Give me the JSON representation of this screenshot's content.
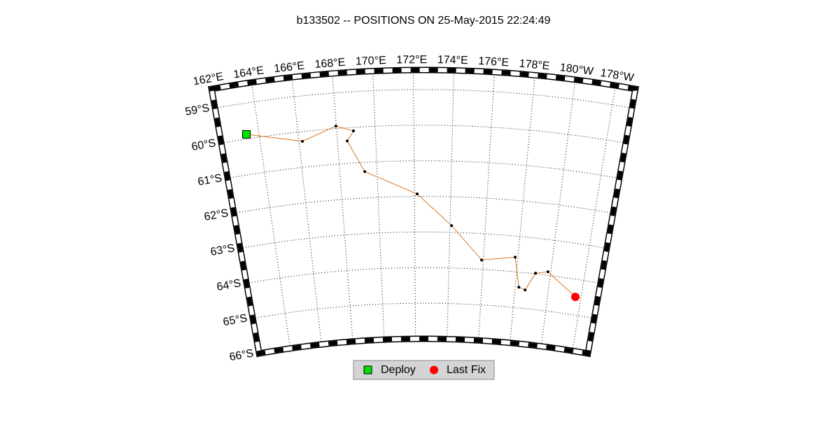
{
  "title": "b133502 -- POSITIONS ON 25-May-2015 22:24:49",
  "map": {
    "lon_lim": [
      162,
      183
    ],
    "lat_lim": [
      -66,
      -58.45
    ],
    "lon_ticks": [
      {
        "value": 162,
        "label": "162°E"
      },
      {
        "value": 164,
        "label": "164°E"
      },
      {
        "value": 166,
        "label": "166°E"
      },
      {
        "value": 168,
        "label": "168°E"
      },
      {
        "value": 170,
        "label": "170°E"
      },
      {
        "value": 172,
        "label": "172°E"
      },
      {
        "value": 174,
        "label": "174°E"
      },
      {
        "value": 176,
        "label": "176°E"
      },
      {
        "value": 178,
        "label": "178°E"
      },
      {
        "value": 180,
        "label": "180°W"
      },
      {
        "value": 182,
        "label": "178°W"
      }
    ],
    "lat_ticks": [
      {
        "value": -59,
        "label": "59°S"
      },
      {
        "value": -60,
        "label": "60°S"
      },
      {
        "value": -61,
        "label": "61°S"
      },
      {
        "value": -62,
        "label": "62°S"
      },
      {
        "value": -63,
        "label": "63°S"
      },
      {
        "value": -64,
        "label": "64°S"
      },
      {
        "value": -65,
        "label": "65°S"
      },
      {
        "value": -66,
        "label": "66°S"
      }
    ],
    "grid": true
  },
  "track": {
    "color": "#d9751f",
    "lon": [
      163.35,
      166.18,
      167.98,
      168.87,
      168.51,
      169.34,
      172.15,
      174.09,
      175.9,
      177.84,
      178.22,
      178.61,
      179.12,
      179.84,
      181.66
    ],
    "lat": [
      -59.87,
      -60.27,
      -59.93,
      -60.1,
      -60.37,
      -61.26,
      -61.93,
      -62.81,
      -63.74,
      -63.59,
      -64.42,
      -64.48,
      -63.98,
      -63.9,
      -64.49
    ]
  },
  "legend": [
    {
      "name": "Deploy",
      "color": "#00e000"
    },
    {
      "name": "Last Fix",
      "color": "#ff0000"
    }
  ]
}
